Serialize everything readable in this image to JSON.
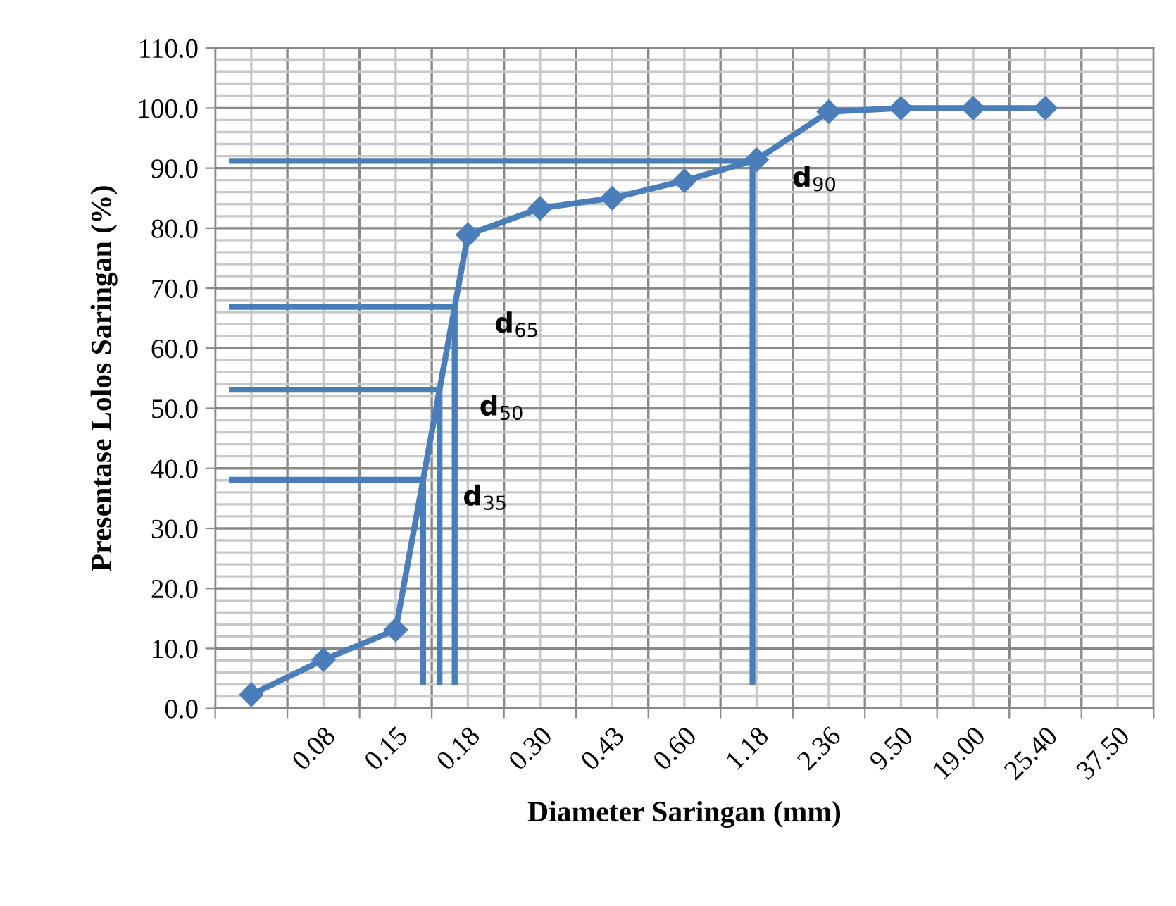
{
  "chart_data": {
    "type": "line",
    "xlabel": "Diameter Saringan (mm)",
    "ylabel": "Presentase Lolos Saringan (%)",
    "categories": [
      null,
      "0.08",
      "0.15",
      "0.18",
      "0.30",
      "0.43",
      "0.60",
      "1.18",
      "2.36",
      "9.50",
      "19.00",
      "25.40",
      "37.50"
    ],
    "series": [
      {
        "color": "#4a7ebb",
        "marker": "diamond",
        "values": [
          2.3,
          8.1,
          13.1,
          78.9,
          83.3,
          85.0,
          87.9,
          91.4,
          99.4,
          100.0,
          100.0,
          100.0,
          null
        ]
      }
    ],
    "ref_lines": [
      {
        "axis": "y",
        "value": 91.2,
        "label": "d$_{90}$",
        "color": "#4a7ebb"
      },
      {
        "axis": "y",
        "value": 66.9,
        "label": "d$_{65}$",
        "color": "#4a7ebb"
      },
      {
        "axis": "y",
        "value": 53.1,
        "label": "d$_{50}$",
        "color": "#4a7ebb"
      },
      {
        "axis": "y",
        "value": 38.1,
        "label": "d$_{35}$",
        "color": "#4a7ebb"
      }
    ],
    "ylim": [
      0,
      110
    ],
    "yticks": [
      {
        "value": 0,
        "label": "0.0"
      },
      {
        "value": 10,
        "label": "10.0"
      },
      {
        "value": 20,
        "label": "20.0"
      },
      {
        "value": 30,
        "label": "30.0"
      },
      {
        "value": 40,
        "label": "40.0"
      },
      {
        "value": 50,
        "label": "50.0"
      },
      {
        "value": 60,
        "label": "60.0"
      },
      {
        "value": 70,
        "label": "70.0"
      },
      {
        "value": 80,
        "label": "80.0"
      },
      {
        "value": 90,
        "label": "90.0"
      },
      {
        "value": 100,
        "label": "100.0"
      },
      {
        "value": 110,
        "label": "110.0"
      }
    ],
    "grid": true
  }
}
